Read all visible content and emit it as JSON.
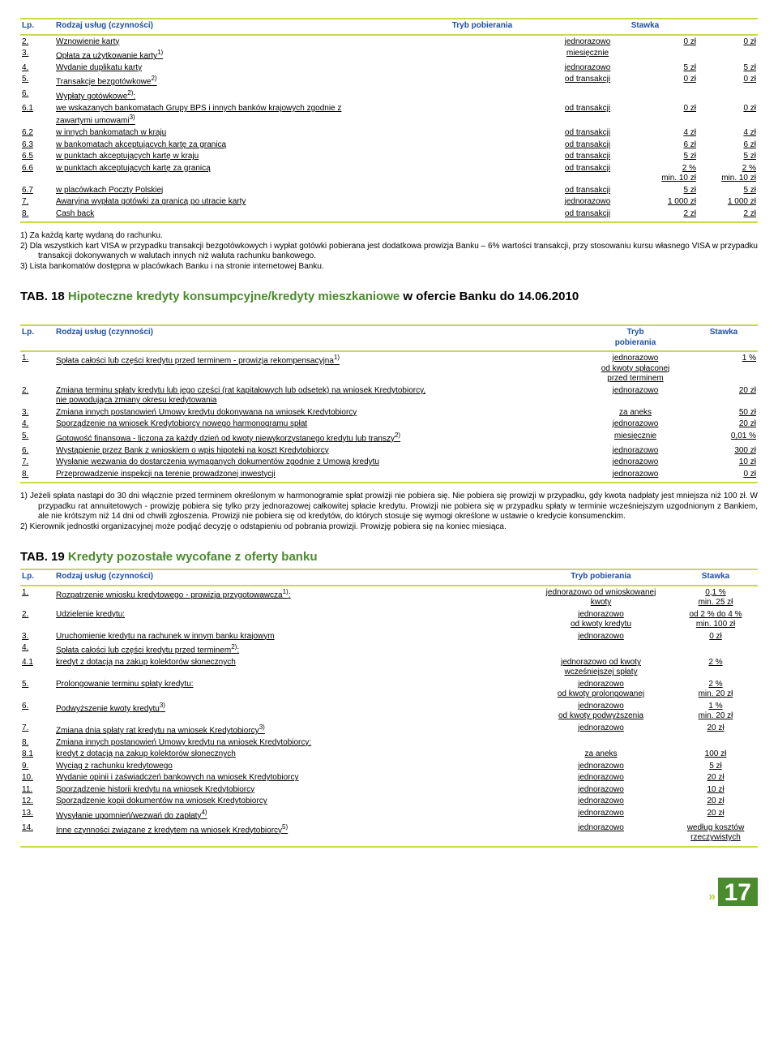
{
  "t1": {
    "headers": {
      "lp": "Lp.",
      "rodzaj": "Rodzaj usług (czynności)",
      "tryb": "Tryb pobierania",
      "stawka": "Stawka"
    },
    "rows": [
      {
        "lp": "2.",
        "name": "Wznowienie karty",
        "tryb": "jednorazowo",
        "s1": "0 zł",
        "s2": "0 zł"
      },
      {
        "lp": "3.",
        "name": "Opłata za użytkowanie karty<sup>1)</sup>",
        "tryb": "miesięcznie",
        "s1": "",
        "s2": ""
      },
      {
        "lp": "4.",
        "name": "Wydanie duplikatu karty",
        "tryb": "jednorazowo",
        "s1": "5 zł",
        "s2": "5 zł"
      },
      {
        "lp": "5.",
        "name": "Transakcje bezgotówkowe<sup>2)</sup>",
        "tryb": "od transakcji",
        "s1": "0 zł",
        "s2": "0 zł"
      },
      {
        "lp": "6.",
        "name": "Wypłaty gotówkowe<sup>2)</sup>:",
        "tryb": "",
        "s1": "",
        "s2": ""
      },
      {
        "lp": "6.1",
        "name": "we wskazanych bankomatach Grupy BPS i innych banków krajowych zgodnie z<br>zawartymi umowami<sup>3)</sup>",
        "tryb": "od transakcji",
        "s1": "0 zł",
        "s2": "0 zł"
      },
      {
        "lp": "6.2",
        "name": "w innych bankomatach w kraju",
        "tryb": "od transakcji",
        "s1": "4 zł",
        "s2": "4 zł"
      },
      {
        "lp": "6.3",
        "name": "w bankomatach akceptujących kartę za granicą",
        "tryb": "od transakcji",
        "s1": "6 zł",
        "s2": "6 zł"
      },
      {
        "lp": "6.5",
        "name": "w punktach akceptujących kartę w kraju",
        "tryb": "od transakcji",
        "s1": "5 zł",
        "s2": "5 zł"
      },
      {
        "lp": "6.6",
        "name": "w punktach akceptujących kartę za granicą",
        "tryb": "od transakcji",
        "s1": "2 %<br>min. 10 zł",
        "s2": "2 %<br>min. 10 zł"
      },
      {
        "lp": "6.7",
        "name": "w placówkach Poczty Polskiej",
        "tryb": "od transakcji",
        "s1": "5 zł",
        "s2": "5 zł"
      },
      {
        "lp": "7.",
        "name": "Awaryjna wypłata gotówki za granicą po utracie karty",
        "tryb": "jednorazowo",
        "s1": "1 000 zł",
        "s2": "1 000 zł"
      },
      {
        "lp": "8.",
        "name": "Cash back",
        "tryb": "od transakcji",
        "s1": "2 zł",
        "s2": "2 zł"
      }
    ],
    "notes": [
      "1)  Za każdą kartę wydaną do rachunku.",
      "2)  Dla wszystkich kart VISA w przypadku  transakcji bezgotówkowych  i wypłat gotówki pobierana jest dodatkowa prowizja Banku – 6% wartości transakcji, przy stosowaniu kursu własnego VISA w przypadku transakcji dokonywanych w walutach innych niż waluta rachunku bankowego.",
      "3)  Lista bankomatów dostępna w placówkach Banku i na stronie internetowej Banku."
    ]
  },
  "t2": {
    "title_black": "TAB. 18 ",
    "title_green": "Hipoteczne kredyty konsumpcyjne/kredyty mieszkaniowe",
    "title_tail": " w ofercie Banku do 14.06.2010",
    "headers": {
      "lp": "Lp.",
      "rodzaj": "Rodzaj usług (czynności)",
      "tryb": "Tryb<br>pobierania",
      "stawka": "Stawka"
    },
    "rows": [
      {
        "lp": "1.",
        "name": "Spłata całości lub części kredytu przed terminem - prowizja rekompensacyjna<sup>1)</sup>",
        "tryb": "jednorazowo<br>od kwoty spłaconej<br>przed terminem",
        "stawka": "1 %"
      },
      {
        "lp": "2.",
        "name": "Zmiana terminu spłaty kredytu lub jego części (rat kapitałowych lub odsetek) na wniosek Kredytobiorcy,<br>nie powodująca zmiany okresu kredytowania",
        "tryb": "jednorazowo",
        "stawka": "20 zł"
      },
      {
        "lp": "3.",
        "name": "Zmiana innych postanowień Umowy kredytu dokonywana na wniosek Kredytobiorcy",
        "tryb": "za aneks",
        "stawka": "50 zł"
      },
      {
        "lp": "4.",
        "name": "Sporządzenie na wniosek Kredytobiorcy nowego harmonogramu spłat",
        "tryb": "jednorazowo",
        "stawka": "20 zł"
      },
      {
        "lp": "5.",
        "name": "Gotowość finansowa - liczona za każdy dzień od kwoty niewykorzystanego kredytu lub transzy<sup>2)</sup>",
        "tryb": "miesięcznie",
        "stawka": "0,01 %"
      },
      {
        "lp": "6.",
        "name": "Wystąpienie przez Bank z wnioskiem o wpis hipoteki na koszt Kredytobiorcy",
        "tryb": "jednorazowo",
        "stawka": "300 zł"
      },
      {
        "lp": "7.",
        "name": "Wysłanie wezwania do dostarczenia wymaganych dokumentów zgodnie z Umową kredytu",
        "tryb": "jednorazowo",
        "stawka": "10 zł"
      },
      {
        "lp": "8.",
        "name": "Przeprowadzenie inspekcji na terenie prowadzonej inwestycji",
        "tryb": "jednorazowo",
        "stawka": "0 zł"
      }
    ],
    "notes": [
      "1)  Jeżeli spłata nastąpi do 30 dni włącznie przed terminem określonym w harmonogramie spłat prowizji nie pobiera się. Nie pobiera się prowizji w przypadku, gdy kwota nadpłaty jest mniejsza niż 100 zł. W przypadku rat annuitetowych  -  prowizję pobiera się tylko przy jednorazowej całkowitej spłacie kredytu. Prowizji nie pobiera się w przypadku spłaty w terminie wcześniejszym uzgodnionym z Bankiem, ale nie krótszym niż 14 dni od chwili zgłoszenia. Prowizji nie pobiera się od kredytów, do których stosuje się wymogi określone w ustawie o kredycie konsumenckim.",
      "2)  Kierownik jednostki organizacyjnej może podjąć decyzję o odstąpieniu od pobrania prowizji. Prowizję pobiera się na koniec miesiąca."
    ]
  },
  "t3": {
    "title_black": "TAB. 19 ",
    "title_green": "Kredyty pozostałe wycofane z oferty banku",
    "headers": {
      "lp": "Lp.",
      "rodzaj": "Rodzaj usług (czynności)",
      "tryb": "Tryb pobierania",
      "stawka": "Stawka"
    },
    "rows": [
      {
        "lp": "1.",
        "name": "Rozpatrzenie wniosku kredytowego - prowizja przygotowawcza<sup>1)</sup>:",
        "tryb": "jednorazowo od wnioskowanej<br>kwoty",
        "stawka": "0,1 %<br>min. 25 zł"
      },
      {
        "lp": "2.",
        "name": "Udzielenie kredytu:",
        "tryb": "jednorazowo<br>od kwoty kredytu",
        "stawka": "od 2 % do 4 %<br>min. 100 zł"
      },
      {
        "lp": "3.",
        "name": "Uruchomienie kredytu na rachunek w innym banku krajowym",
        "tryb": "jednorazowo",
        "stawka": "0 zł"
      },
      {
        "lp": "4.",
        "name": "Spłata całości lub części kredytu przed terminem<sup>2)</sup>:",
        "tryb": "",
        "stawka": ""
      },
      {
        "lp": "4.1",
        "name": "kredyt z dotacją na zakup kolektorów słonecznych",
        "tryb": "jednorazowo od kwoty<br>wcześniejszej spłaty",
        "stawka": "2 %"
      },
      {
        "lp": "5.",
        "name": "Prolongowanie terminu spłaty kredytu:",
        "tryb": "jednorazowo<br>od kwoty prolongowanej",
        "stawka": "2 %<br>min. 20 zł"
      },
      {
        "lp": "6.",
        "name": "Podwyższenie kwoty kredytu<sup>3)</sup>",
        "tryb": "jednorazowo<br>od kwoty podwyższenia",
        "stawka": "1 %<br>min. 20 zł"
      },
      {
        "lp": "7.",
        "name": "Zmiana dnia spłaty rat kredytu na wniosek Kredytobiorcy<sup>3)</sup>",
        "tryb": "jednorazowo",
        "stawka": "20 zł"
      },
      {
        "lp": "8.",
        "name": "Zmiana innych postanowień Umowy kredytu na wniosek Kredytobiorcy:",
        "tryb": "",
        "stawka": ""
      },
      {
        "lp": "8.1",
        "name": "kredyt z dotacją na zakup kolektorów słonecznych",
        "tryb": "za aneks",
        "stawka": "100 zł"
      },
      {
        "lp": "9.",
        "name": "Wyciąg z rachunku kredytowego",
        "tryb": "jednorazowo",
        "stawka": "5 zł"
      },
      {
        "lp": "10.",
        "name": "Wydanie opinii i zaświadczeń bankowych na wniosek Kredytobiorcy",
        "tryb": "jednorazowo",
        "stawka": "20 zł"
      },
      {
        "lp": "11.",
        "name": "Sporządzenie historii kredytu na wniosek Kredytobiorcy",
        "tryb": "jednorazowo",
        "stawka": "10 zł"
      },
      {
        "lp": "12.",
        "name": "Sporządzenie kopii dokumentów na wniosek Kredytobiorcy",
        "tryb": "jednorazowo",
        "stawka": "20 zł"
      },
      {
        "lp": "13.",
        "name": "Wysyłanie upomnień/wezwań do zapłaty<sup>4)</sup>",
        "tryb": "jednorazowo",
        "stawka": "20 zł"
      },
      {
        "lp": "14.",
        "name": "Inne czynności związane z kredytem na wniosek Kredytobiorcy<sup>5)</sup>",
        "tryb": "jednorazowo",
        "stawka": "według kosztów<br>rzeczywistych"
      }
    ]
  },
  "page": "17"
}
